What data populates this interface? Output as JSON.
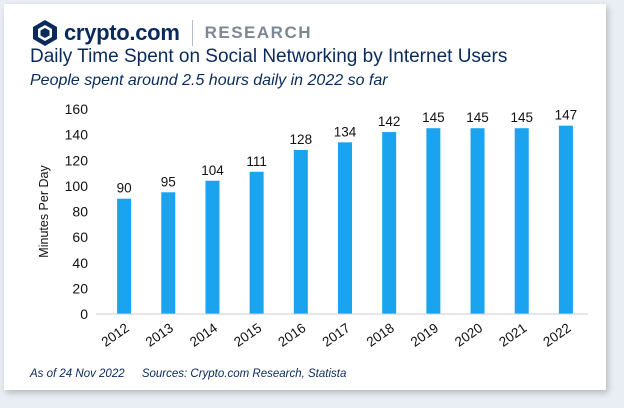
{
  "header": {
    "brand": "crypto.com",
    "section": "RESEARCH"
  },
  "chart_data": {
    "type": "bar",
    "title": "Daily Time Spent on Social Networking by Internet Users",
    "subtitle": "People spent around 2.5 hours daily in 2022 so far",
    "xlabel": "",
    "ylabel": "Minutes Per Day",
    "categories": [
      "2012",
      "2013",
      "2014",
      "2015",
      "2016",
      "2017",
      "2018",
      "2019",
      "2020",
      "2021",
      "2022"
    ],
    "values": [
      90,
      95,
      104,
      111,
      128,
      134,
      142,
      145,
      145,
      145,
      147
    ],
    "ylim": [
      0,
      160
    ],
    "yticks": [
      0,
      20,
      40,
      60,
      80,
      100,
      120,
      140,
      160
    ],
    "bar_color": "#1aa3ee",
    "grid": false
  },
  "footer": {
    "date_note": "As of 24 Nov 2022",
    "sources": "Sources: Crypto.com Research, Statista"
  }
}
